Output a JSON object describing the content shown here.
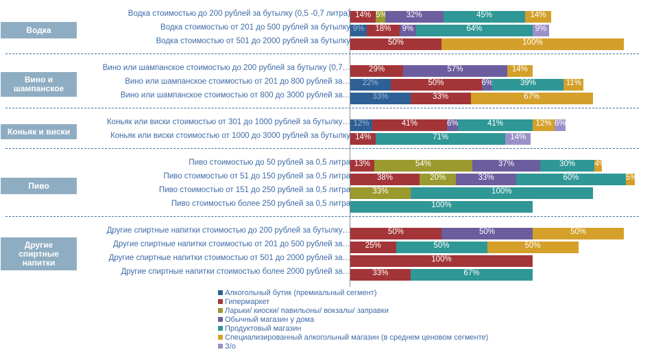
{
  "chart_data": {
    "type": "bar",
    "orientation": "horizontal",
    "stacked": true,
    "title": "",
    "series": [
      {
        "name": "Алкогольный бутик (премиальный сегмент)",
        "color": "#2e6096"
      },
      {
        "name": "Гипермаркет",
        "color": "#a33538"
      },
      {
        "name": "Ларьки/ киоски/ павильоны/ вокзалы/ заправки",
        "color": "#9a9a2e"
      },
      {
        "name": "Обычный магазин у дома",
        "color": "#6b5d9e"
      },
      {
        "name": "Продуктовый магазин",
        "color": "#2f9796"
      },
      {
        "name": "Специализированный алкогольный магазин (в среднем ценовом сегменте)",
        "color": "#d4a02a"
      },
      {
        "name": "З/о",
        "color": "#9b90c8"
      }
    ],
    "groups": [
      {
        "name": "Водка",
        "rows": [
          {
            "label": "Водка стоимостью до 200 рублей за бутылку (0,5 -0,7 литра)",
            "values": [
              null,
              14,
              5,
              32,
              45,
              14,
              null
            ]
          },
          {
            "label": "Водка стоимостью от 201 до 500 рублей за бутылку",
            "values": [
              9,
              18,
              null,
              9,
              64,
              null,
              9
            ]
          },
          {
            "label": "Водка стоимостью от 501 до 2000 рублей за бутылку",
            "values": [
              null,
              50,
              null,
              null,
              null,
              100,
              null
            ]
          }
        ]
      },
      {
        "name": "Вино и шампанское",
        "rows": [
          {
            "label": "Вино или шампанское стоимостью до 200 рублей за бутылку (0,7…",
            "values": [
              null,
              29,
              null,
              57,
              null,
              14,
              null
            ]
          },
          {
            "label": "Вино или шампанское стоимостью от 201 до 800 рублей за…",
            "values": [
              22,
              50,
              null,
              6,
              39,
              11,
              null
            ]
          },
          {
            "label": "Вино или шампанское стоимостью от 800 до 3000 рублей за…",
            "values": [
              33,
              33,
              null,
              null,
              null,
              67,
              null
            ]
          }
        ]
      },
      {
        "name": "Коньяк и виски",
        "rows": [
          {
            "label": "Коньяк или виски стоимостью от 301 до 1000 рублей за бутылку…",
            "values": [
              12,
              41,
              null,
              6,
              41,
              12,
              6
            ]
          },
          {
            "label": "Коньяк  или виски стоимостью от   1000  до 3000 рублей за бутылку",
            "values": [
              null,
              14,
              null,
              null,
              71,
              null,
              14
            ]
          }
        ]
      },
      {
        "name": "Пиво",
        "rows": [
          {
            "label": "Пиво стоимостью до 50 рублей за 0,5 литра",
            "values": [
              null,
              13,
              54,
              37,
              30,
              4,
              null
            ]
          },
          {
            "label": "Пиво  стоимостью от 51 до 150 рублей за 0,5 литра",
            "values": [
              null,
              38,
              20,
              33,
              60,
              5,
              null
            ]
          },
          {
            "label": "Пиво стоимостью от 151 до 250 рублей за 0,5 литра",
            "values": [
              null,
              null,
              33,
              null,
              100,
              null,
              null
            ]
          },
          {
            "label": "Пиво стоимостью более 250 рублей за 0,5 литра",
            "values": [
              null,
              null,
              null,
              null,
              100,
              null,
              null
            ]
          }
        ]
      },
      {
        "name": "Другие спиртные напитки",
        "rows": [
          {
            "label": "Другие спиртные напитки стоимостью до 200 рублей за бутылку…",
            "values": [
              null,
              50,
              null,
              50,
              null,
              50,
              null
            ]
          },
          {
            "label": "Другие спиртные напитки стоимостью от 201 до 500 рублей за…",
            "values": [
              null,
              25,
              null,
              null,
              50,
              50,
              null
            ]
          },
          {
            "label": "Другие спиртные напитки стоимостью от 501 до 2000 рублей за…",
            "values": [
              null,
              100,
              null,
              null,
              null,
              null,
              null
            ]
          },
          {
            "label": "Другие спиртные напитки стоимостью более 2000 рублей за…",
            "values": [
              null,
              33,
              null,
              null,
              67,
              null,
              null
            ]
          }
        ]
      }
    ],
    "value_suffix": "%",
    "legend_position": "bottom"
  }
}
